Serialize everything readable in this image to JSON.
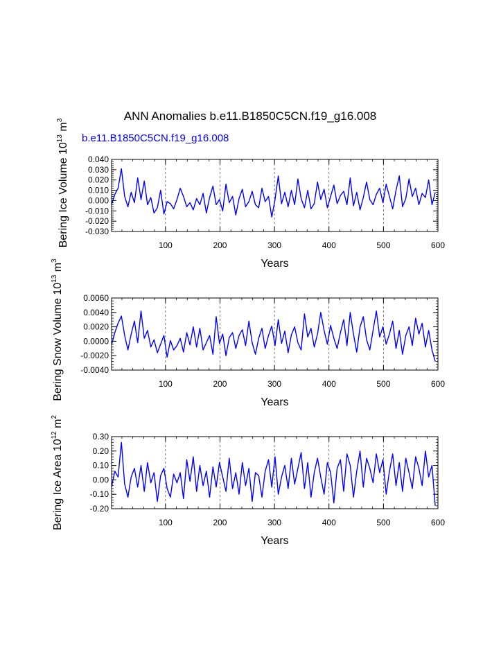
{
  "page": {
    "main_title": "ANN Anomalies b.e11.B1850C5CN.f19_g16.008",
    "case_label": "b.e11.B1850C5CN.f19_g16.008",
    "series_color": "#0000ff",
    "dash_color": "#555555"
  },
  "chart_data": [
    {
      "type": "line",
      "id": "ice-volume",
      "title": "",
      "xlabel": "Years",
      "ylabel": "Bering Ice Volume",
      "ylabel_units": {
        "base": "10",
        "exp1": "13",
        "unit": "m",
        "exp2": "3"
      },
      "xlim": [
        1,
        600
      ],
      "ylim": [
        -0.03,
        0.04
      ],
      "xticks": [
        100,
        200,
        300,
        400,
        500,
        600
      ],
      "xtick_labels": [
        "100",
        "200",
        "300",
        "400",
        "500",
        "600"
      ],
      "yticks": [
        -0.03,
        -0.02,
        -0.01,
        0.0,
        0.01,
        0.02,
        0.03,
        0.04
      ],
      "ytick_labels": [
        "-0.030",
        "-0.020",
        "-0.010",
        "0.000",
        "0.010",
        "0.020",
        "0.030",
        "0.040"
      ],
      "yminor_step": 0.002,
      "gridlines_x": [
        100,
        200,
        300,
        400,
        500
      ],
      "series": [
        {
          "name": "b.e11.B1850C5CN.f19_g16.008",
          "x_start": 1,
          "x_step": 6,
          "values": [
            -0.004,
            0.006,
            0.012,
            0.031,
            0.004,
            -0.006,
            0.008,
            -0.002,
            0.022,
            0.001,
            0.019,
            -0.004,
            0.003,
            -0.012,
            -0.007,
            0.01,
            -0.013,
            -0.001,
            -0.003,
            -0.008,
            0.001,
            0.012,
            0.004,
            -0.006,
            -0.002,
            -0.009,
            0.002,
            -0.004,
            0.007,
            -0.012,
            0.003,
            0.014,
            -0.004,
            0.001,
            -0.01,
            0.016,
            -0.002,
            0.004,
            -0.014,
            0.002,
            0.011,
            -0.006,
            -0.001,
            0.009,
            -0.004,
            -0.007,
            0.012,
            -0.001,
            0.004,
            -0.016,
            0.001,
            0.024,
            -0.003,
            0.008,
            -0.006,
            0.01,
            -0.004,
            0.021,
            0.002,
            -0.007,
            0.01,
            -0.008,
            -0.003,
            0.018,
            0.001,
            0.011,
            -0.007,
            0.004,
            0.015,
            -0.003,
            0.005,
            0.009,
            -0.004,
            0.022,
            -0.005,
            0.008,
            -0.009,
            0.003,
            0.018,
            0.001,
            -0.004,
            0.006,
            0.012,
            -0.002,
            0.016,
            0.004,
            -0.008,
            0.01,
            0.024,
            -0.006,
            0.002,
            0.021,
            0.004,
            0.012,
            -0.004,
            0.007,
            0.003,
            0.02,
            -0.004,
            0.008
          ]
        }
      ]
    },
    {
      "type": "line",
      "id": "snow-volume",
      "title": "",
      "xlabel": "Years",
      "ylabel": "Bering Snow Volume",
      "ylabel_units": {
        "base": "10",
        "exp1": "13",
        "unit": "m",
        "exp2": "3"
      },
      "xlim": [
        1,
        600
      ],
      "ylim": [
        -0.004,
        0.006
      ],
      "xticks": [
        100,
        200,
        300,
        400,
        500,
        600
      ],
      "xtick_labels": [
        "100",
        "200",
        "300",
        "400",
        "500",
        "600"
      ],
      "yticks": [
        -0.004,
        -0.002,
        0.0,
        0.002,
        0.004,
        0.006
      ],
      "ytick_labels": [
        "-0.0040",
        "-0.0020",
        "0.0000",
        "0.0020",
        "0.0040",
        "0.0060"
      ],
      "yminor_step": 0.0004,
      "gridlines_x": [
        100,
        200,
        300,
        400,
        500
      ],
      "series": [
        {
          "name": "b.e11.B1850C5CN.f19_g16.008",
          "x_start": 1,
          "x_step": 6,
          "values": [
            -0.0005,
            0.0012,
            0.0025,
            0.0035,
            0.0008,
            -0.0012,
            0.001,
            0.0028,
            -0.0002,
            0.0042,
            0.0004,
            0.0015,
            -0.0008,
            0.0002,
            -0.0016,
            -0.0004,
            0.0008,
            -0.0022,
            0.0001,
            -0.0012,
            -0.0006,
            0.0004,
            -0.0015,
            0.0012,
            -0.0005,
            0.002,
            -0.0008,
            0.0018,
            -0.0012,
            -0.0002,
            0.0008,
            -0.0018,
            0.0034,
            -0.0003,
            0.001,
            -0.002,
            0.0005,
            0.0012,
            -0.001,
            0.0008,
            0.0016,
            -0.0006,
            0.0028,
            -0.0002,
            -0.0018,
            0.0004,
            0.0018,
            -0.001,
            0.0008,
            0.0021,
            -0.0006,
            0.003,
            -0.0003,
            0.0014,
            -0.0016,
            0.0009,
            0.002,
            -0.0002,
            -0.0012,
            0.0038,
            0.0006,
            0.0018,
            -0.0008,
            0.001,
            0.004,
            0.0015,
            -0.0004,
            0.0022,
            0.0004,
            -0.001,
            0.0012,
            0.003,
            -0.0006,
            0.004,
            0.001,
            -0.0015,
            0.002,
            0.0034,
            0.0002,
            -0.0012,
            0.0015,
            0.0042,
            0.0006,
            0.002,
            -0.0004,
            0.001,
            0.0028,
            -0.001,
            0.0015,
            -0.0018,
            0.0008,
            0.002,
            -0.0006,
            0.0032,
            0.001,
            0.0025,
            -0.0008,
            0.0015,
            -0.0012,
            -0.0028
          ]
        }
      ]
    },
    {
      "type": "line",
      "id": "ice-area",
      "title": "",
      "xlabel": "Years",
      "ylabel": "Bering Ice Area",
      "ylabel_units": {
        "base": "10",
        "exp1": "12",
        "unit": "m",
        "exp2": "2"
      },
      "xlim": [
        1,
        600
      ],
      "ylim": [
        -0.2,
        0.3
      ],
      "xticks": [
        100,
        200,
        300,
        400,
        500,
        600
      ],
      "xtick_labels": [
        "100",
        "200",
        "300",
        "400",
        "500",
        "600"
      ],
      "yticks": [
        -0.2,
        -0.1,
        0.0,
        0.1,
        0.2,
        0.3
      ],
      "ytick_labels": [
        "-0.20",
        "-0.10",
        "0.00",
        "0.10",
        "0.20",
        "0.30"
      ],
      "yminor_step": 0.02,
      "gridlines_x": [
        100,
        200,
        300,
        400,
        500
      ],
      "series": [
        {
          "name": "b.e11.B1850C5CN.f19_g16.008",
          "x_start": 1,
          "x_step": 6,
          "values": [
            -0.05,
            0.06,
            0.02,
            0.26,
            -0.03,
            -0.12,
            0.02,
            0.08,
            -0.05,
            0.1,
            -0.08,
            0.12,
            -0.02,
            0.05,
            -0.15,
            0.03,
            0.08,
            -0.06,
            -0.12,
            0.04,
            -0.02,
            0.05,
            -0.13,
            0.14,
            -0.01,
            0.16,
            -0.08,
            0.1,
            -0.04,
            0.06,
            -0.12,
            0.09,
            -0.05,
            0.12,
            0.02,
            -0.08,
            0.15,
            -0.06,
            0.05,
            -0.1,
            0.12,
            -0.04,
            0.08,
            -0.15,
            0.05,
            0.03,
            -0.12,
            0.06,
            0.14,
            -0.05,
            0.16,
            -0.1,
            0.02,
            0.1,
            -0.06,
            0.15,
            -0.03,
            0.08,
            0.19,
            -0.06,
            0.12,
            -0.12,
            0.05,
            0.15,
            0.02,
            -0.1,
            0.12,
            0.05,
            -0.16,
            0.08,
            0.14,
            -0.08,
            0.18,
            0.1,
            -0.12,
            0.06,
            0.2,
            -0.05,
            0.15,
            0.08,
            -0.02,
            0.18,
            0.05,
            0.14,
            -0.1,
            0.06,
            0.18,
            -0.04,
            0.12,
            -0.08,
            0.15,
            0.05,
            -0.06,
            0.16,
            0.08,
            -0.04,
            0.2,
            0.02,
            0.1,
            -0.18
          ]
        }
      ]
    }
  ]
}
